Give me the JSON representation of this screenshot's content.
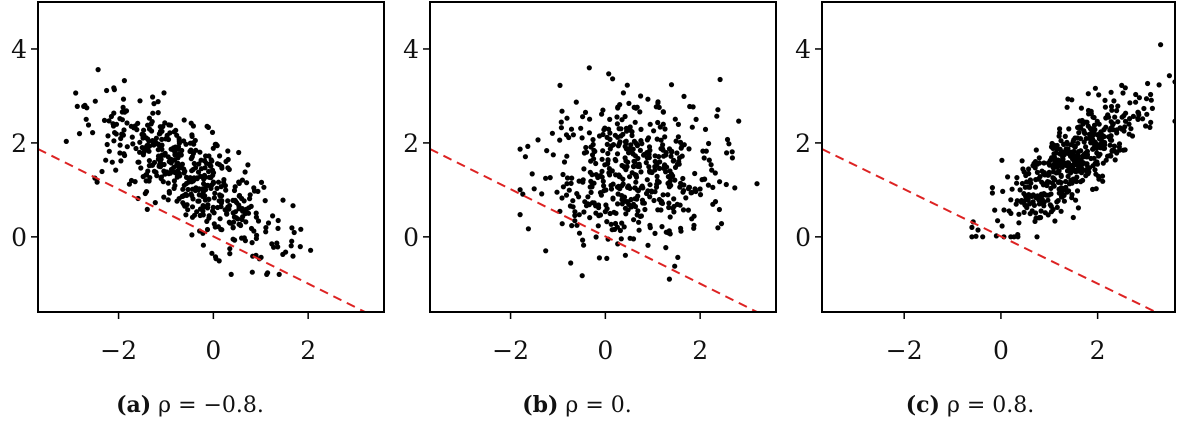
{
  "panels": [
    {
      "caption_label": "(a)",
      "caption_text": "ρ = −0.8."
    },
    {
      "caption_label": "(b)",
      "caption_text": "ρ = 0."
    },
    {
      "caption_label": "(c)",
      "caption_text": "ρ = 0.8."
    }
  ],
  "colors": {
    "points": "#000000",
    "boundary_line": "#dd2222"
  },
  "chart_data": [
    {
      "type": "scatter",
      "xlim": [
        -3.7,
        3.6
      ],
      "ylim": [
        -1.6,
        5.0
      ],
      "xticks": [
        -2,
        0,
        2
      ],
      "yticks": [
        0,
        2,
        4
      ],
      "xtick_labels": [
        "−2",
        "0",
        "2"
      ],
      "ytick_labels": [
        "0",
        "2",
        "4"
      ],
      "boundary_line": {
        "style": "dashed",
        "points": [
          [
            -3.7,
            1.87
          ],
          [
            3.2,
            -1.6
          ]
        ]
      },
      "points_summary": {
        "count": 500,
        "x_mean": -0.5,
        "y_mean": 1.3,
        "x_sd": 1.0,
        "y_sd": 0.85,
        "correlation": -0.8,
        "x_range": [
          -3.5,
          2.2
        ],
        "y_range": [
          -0.8,
          3.7
        ]
      }
    },
    {
      "type": "scatter",
      "xlim": [
        -3.7,
        3.6
      ],
      "ylim": [
        -1.6,
        5.0
      ],
      "xticks": [
        -2,
        0,
        2
      ],
      "yticks": [
        0,
        2,
        4
      ],
      "xtick_labels": [
        "−2",
        "0",
        "2"
      ],
      "ytick_labels": [
        "0",
        "2",
        "4"
      ],
      "boundary_line": {
        "style": "dashed",
        "points": [
          [
            -3.7,
            1.87
          ],
          [
            3.2,
            -1.6
          ]
        ]
      },
      "points_summary": {
        "count": 500,
        "x_mean": 0.6,
        "y_mean": 1.4,
        "x_sd": 0.9,
        "y_sd": 0.8,
        "correlation": 0.0,
        "x_range": [
          -1.8,
          3.2
        ],
        "y_range": [
          -0.9,
          3.6
        ]
      }
    },
    {
      "type": "scatter",
      "xlim": [
        -3.7,
        3.6
      ],
      "ylim": [
        -1.6,
        5.0
      ],
      "xticks": [
        -2,
        0,
        2
      ],
      "yticks": [
        0,
        2,
        4
      ],
      "xtick_labels": [
        "−2",
        "0",
        "2"
      ],
      "ytick_labels": [
        "0",
        "2",
        "4"
      ],
      "boundary_line": {
        "style": "dashed",
        "points": [
          [
            -3.7,
            1.87
          ],
          [
            3.2,
            -1.6
          ]
        ]
      },
      "points_summary": {
        "count": 500,
        "x_mean": 1.5,
        "y_mean": 1.6,
        "x_sd": 0.75,
        "y_sd": 0.75,
        "correlation": 0.8,
        "x_range": [
          -0.6,
          3.6
        ],
        "y_range": [
          0.0,
          4.1
        ]
      }
    }
  ]
}
